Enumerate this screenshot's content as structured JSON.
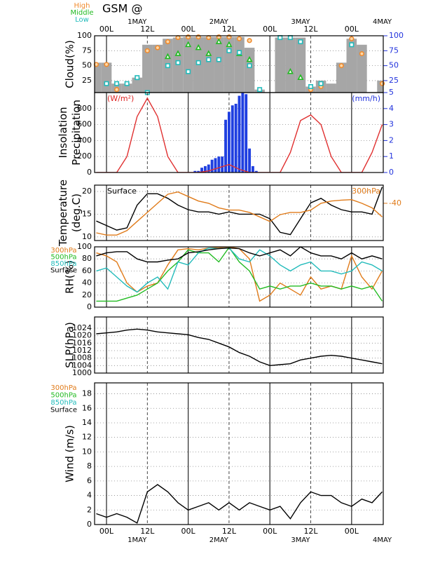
{
  "chart_data": {
    "type": "meteogram",
    "title": "GSM  @",
    "xlim": [
      -3.5,
      81.3
    ],
    "xticks": [
      {
        "value": 0,
        "label": "00L"
      },
      {
        "value": 12,
        "label": "12L"
      },
      {
        "value": 24,
        "label": "00L"
      },
      {
        "value": 36,
        "label": "12L"
      },
      {
        "value": 48,
        "label": "00L"
      },
      {
        "value": 60,
        "label": "12L"
      },
      {
        "value": 72,
        "label": "00L"
      }
    ],
    "date_ticks": [
      {
        "value": 9,
        "label": "1MAY"
      },
      {
        "value": 33,
        "label": "2MAY"
      },
      {
        "value": 57,
        "label": "3MAY"
      },
      {
        "value": 81,
        "label": "4MAY"
      }
    ],
    "x": [
      -3,
      0,
      3,
      6,
      9,
      12,
      15,
      18,
      21,
      24,
      27,
      30,
      33,
      36,
      39,
      42,
      45,
      48,
      51,
      54,
      57,
      60,
      63,
      66,
      69,
      72,
      75,
      78,
      81
    ],
    "panels": [
      {
        "type": "cloud",
        "ylabel": [
          "Cloud(%)"
        ],
        "ylim": [
          5,
          100
        ],
        "yticks": [
          25,
          50,
          75,
          100
        ],
        "y2lim": [
          5,
          100
        ],
        "y2ticks": [
          5,
          25,
          50,
          75,
          100
        ],
        "y2color": "#2233dd",
        "series": [
          {
            "kind": "bar",
            "color": "#a6a6a6",
            "values": [
              55,
              55,
              20,
              20,
              30,
              85,
              85,
              95,
              97,
              98,
              98,
              98,
              98,
              98,
              98,
              80,
              10,
              null,
              97,
              97,
              97,
              15,
              25,
              20,
              55,
              95,
              85,
              null,
              25
            ]
          },
          {
            "kind": "marker",
            "marker": "circle",
            "name": "High",
            "color": "#f08a2c",
            "values": [
              52,
              52,
              10,
              null,
              null,
              75,
              80,
              90,
              97,
              98,
              98,
              97,
              98,
              98,
              95,
              92,
              null,
              null,
              null,
              null,
              null,
              10,
              15,
              null,
              50,
              95,
              70,
              null,
              20
            ]
          },
          {
            "kind": "marker",
            "marker": "triangle",
            "name": "Middle",
            "color": "#22bb22",
            "values": [
              null,
              null,
              null,
              null,
              null,
              null,
              null,
              65,
              70,
              85,
              80,
              70,
              90,
              85,
              70,
              60,
              null,
              null,
              null,
              40,
              30,
              null,
              null,
              null,
              null,
              null,
              null,
              null,
              null
            ]
          },
          {
            "kind": "marker",
            "marker": "square",
            "name": "Low",
            "color": "#22bbbb",
            "values": [
              null,
              20,
              20,
              20,
              30,
              5,
              null,
              50,
              55,
              40,
              55,
              60,
              60,
              75,
              72,
              50,
              10,
              null,
              97,
              97,
              90,
              15,
              20,
              null,
              null,
              85,
              null,
              null,
              null
            ]
          }
        ]
      },
      {
        "type": "insolation",
        "ylabel": [
          "Insolation",
          "Precipitation"
        ],
        "ylim": [
          0,
          1000
        ],
        "yticks": [
          0,
          200,
          400,
          600,
          800
        ],
        "y2lim": [
          0,
          5
        ],
        "y2ticks": [
          0,
          1,
          2,
          3,
          4
        ],
        "y2color": "#2233dd",
        "annotations": [
          {
            "text": "(W/m²)",
            "color": "#dd2222"
          },
          {
            "text": "(mm/h)",
            "color": "#2233dd"
          }
        ],
        "series": [
          {
            "kind": "bar",
            "axis": "y2",
            "color": "#1f3fe0",
            "x": [
              26,
              27,
              28,
              29,
              30,
              31,
              32,
              33,
              34,
              35,
              36,
              37,
              38,
              39,
              40,
              41,
              42,
              43,
              44
            ],
            "values": [
              0.1,
              0.1,
              0.3,
              0.4,
              0.5,
              0.8,
              0.9,
              1.0,
              1.0,
              3.3,
              3.8,
              4.2,
              4.3,
              4.8,
              5,
              4.9,
              1.5,
              0.4,
              0.1
            ]
          },
          {
            "kind": "line",
            "color": "#e03030",
            "values": [
              0,
              0,
              0,
              200,
              700,
              930,
              700,
              200,
              0,
              0,
              0,
              20,
              60,
              100,
              40,
              0,
              0,
              0,
              0,
              250,
              650,
              720,
              600,
              200,
              0,
              0,
              0,
              250,
              600
            ]
          }
        ]
      },
      {
        "type": "temperature",
        "ylabel": [
          "Temperature",
          "(deg.C)"
        ],
        "ylim": [
          9.2,
          21.4
        ],
        "yticks": [
          10,
          15,
          20
        ],
        "y2lim": [
          -48.2,
          -36
        ],
        "y2ticks": [
          -40
        ],
        "y2color": "#e07b1a",
        "annotations": [
          {
            "text": "Surface",
            "color": "#000000"
          },
          {
            "text": "300hPa",
            "color": "#e07b1a"
          }
        ],
        "series": [
          {
            "kind": "line",
            "color": "#000000",
            "values": [
              13.5,
              12.5,
              11.5,
              12,
              17,
              19.5,
              19.5,
              18.5,
              17,
              16,
              15.5,
              15.5,
              15,
              15.5,
              15,
              15,
              15,
              14,
              11,
              10.5,
              14,
              17.5,
              18.5,
              17,
              16,
              15.5,
              15.5,
              15,
              21
            ]
          },
          {
            "kind": "line",
            "axis": "y2",
            "color": "#e07b1a",
            "values": [
              -46.5,
              -47,
              -47,
              -46,
              -44,
              -42,
              -40,
              -38,
              -37.5,
              -38.5,
              -39.5,
              -40,
              -41,
              -41.5,
              -41.5,
              -42,
              -43,
              -44,
              -42.5,
              -42,
              -42,
              -41.5,
              -40,
              -39.5,
              -39.3,
              -39.2,
              -40,
              -41,
              -43
            ]
          }
        ]
      },
      {
        "type": "rh",
        "ylabel": [
          "RH(%)"
        ],
        "ylim": [
          0,
          100
        ],
        "yticks": [
          0,
          20,
          40,
          60,
          80,
          100
        ],
        "legend": "left",
        "series": [
          {
            "kind": "line",
            "name": "300hPa",
            "color": "#e07b1a",
            "values": [
              90,
              85,
              75,
              40,
              25,
              35,
              40,
              70,
              95,
              97,
              95,
              98,
              99,
              100,
              97,
              80,
              10,
              20,
              40,
              30,
              20,
              50,
              30,
              35,
              30,
              85,
              50,
              30,
              60
            ]
          },
          {
            "kind": "line",
            "name": "500hPa",
            "color": "#22bb22",
            "values": [
              10,
              10,
              10,
              15,
              20,
              30,
              40,
              60,
              75,
              95,
              90,
              90,
              75,
              99,
              75,
              60,
              30,
              35,
              30,
              35,
              35,
              40,
              35,
              35,
              30,
              35,
              30,
              35,
              10
            ]
          },
          {
            "kind": "line",
            "name": "850hPa",
            "color": "#22bbbb",
            "values": [
              60,
              65,
              50,
              35,
              25,
              40,
              50,
              30,
              75,
              70,
              90,
              98,
              97,
              98,
              80,
              75,
              95,
              85,
              70,
              60,
              70,
              75,
              60,
              60,
              55,
              60,
              75,
              70,
              60
            ]
          },
          {
            "kind": "line",
            "name": "Surface",
            "color": "#000000",
            "values": [
              85,
              90,
              92,
              92,
              80,
              75,
              75,
              78,
              80,
              90,
              92,
              95,
              97,
              98,
              97,
              90,
              85,
              90,
              95,
              85,
              100,
              90,
              85,
              85,
              80,
              90,
              80,
              85,
              80
            ]
          }
        ]
      },
      {
        "type": "slp",
        "ylabel": [
          "SLP(hPa)"
        ],
        "ylim": [
          1000,
          1030
        ],
        "yticks": [
          1000,
          1004,
          1008,
          1012,
          1016,
          1020,
          1024
        ],
        "series": [
          {
            "kind": "line",
            "color": "#000000",
            "values": [
              1021,
              1021.5,
              1022,
              1023,
              1023.5,
              1023,
              1022,
              1021.5,
              1021,
              1020.5,
              1019,
              1018,
              1016,
              1014,
              1011,
              1009,
              1006,
              1004,
              1004.5,
              1005,
              1007,
              1008,
              1009,
              1009.5,
              1009,
              1008,
              1007,
              1006,
              1005
            ]
          }
        ]
      },
      {
        "type": "wind",
        "ylabel": [
          "Wind  (m/s)"
        ],
        "ylim": [
          0,
          19.5
        ],
        "yticks": [
          0,
          2,
          4,
          6,
          8,
          10,
          12,
          14,
          16,
          18
        ],
        "levels": [
          {
            "name": "300hPa",
            "color": "#e07b1a"
          },
          {
            "name": "500hPa",
            "color": "#22bb22"
          },
          {
            "name": "850hPa",
            "color": "#22bbbb"
          },
          {
            "name": "Surface",
            "color": "#000000"
          }
        ],
        "series": [
          {
            "kind": "line",
            "color": "#000000",
            "values": [
              1.5,
              1,
              1.5,
              1,
              0.2,
              4.5,
              5.5,
              4.5,
              3,
              2,
              2.5,
              3,
              2,
              3,
              2,
              3,
              2.5,
              2,
              2.5,
              0.8,
              3,
              4.5,
              4,
              4,
              3,
              2.5,
              3.5,
              3,
              4.5
            ]
          }
        ]
      }
    ]
  }
}
